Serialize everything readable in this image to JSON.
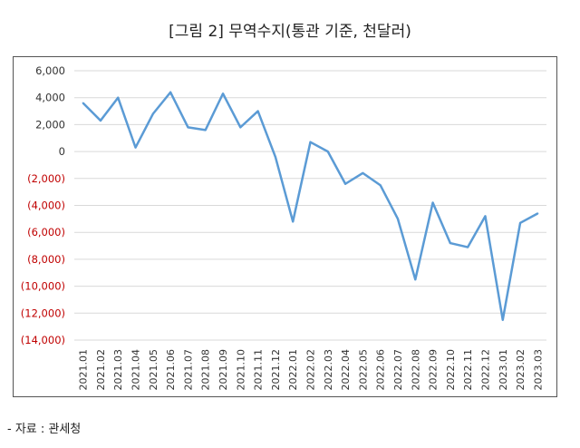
{
  "title": "[그림 2] 무역수지(통관 기준, 천달러)",
  "source": "- 자료 : 관세청",
  "chart_data": {
    "type": "line",
    "title": "[그림 2] 무역수지(통관 기준, 천달러)",
    "xlabel": "",
    "ylabel": "",
    "ylim": [
      -14000,
      6000
    ],
    "yticks": [
      6000,
      4000,
      2000,
      0,
      -2000,
      -4000,
      -6000,
      -8000,
      -10000,
      -12000,
      -14000
    ],
    "ytick_labels": [
      "6,000",
      "4,000",
      "2,000",
      "0",
      "(2,000)",
      "(4,000)",
      "(6,000)",
      "(8,000)",
      "(10,000)",
      "(12,000)",
      "(14,000)"
    ],
    "negative_label_color": "#c00000",
    "line_color": "#5b9bd5",
    "grid": true,
    "categories": [
      "2021.01",
      "2021.02",
      "2021.03",
      "2021.04",
      "2021.05",
      "2021.06",
      "2021.07",
      "2021.08",
      "2021.09",
      "2021.10",
      "2021.11",
      "2021.12",
      "2022.01",
      "2022.02",
      "2022.03",
      "2022.04",
      "2022.05",
      "2022.06",
      "2022.07",
      "2022.08",
      "2022.09",
      "2022.10",
      "2022.11",
      "2022.12",
      "2023.01",
      "2023.02",
      "2023.03"
    ],
    "values": [
      3600,
      2300,
      4000,
      300,
      2800,
      4400,
      1800,
      1600,
      4300,
      1800,
      3000,
      -400,
      -5200,
      700,
      0,
      -2400,
      -1600,
      -2500,
      -5000,
      -9500,
      -3800,
      -6800,
      -7100,
      -4800,
      -12500,
      -5300,
      -4600
    ]
  }
}
